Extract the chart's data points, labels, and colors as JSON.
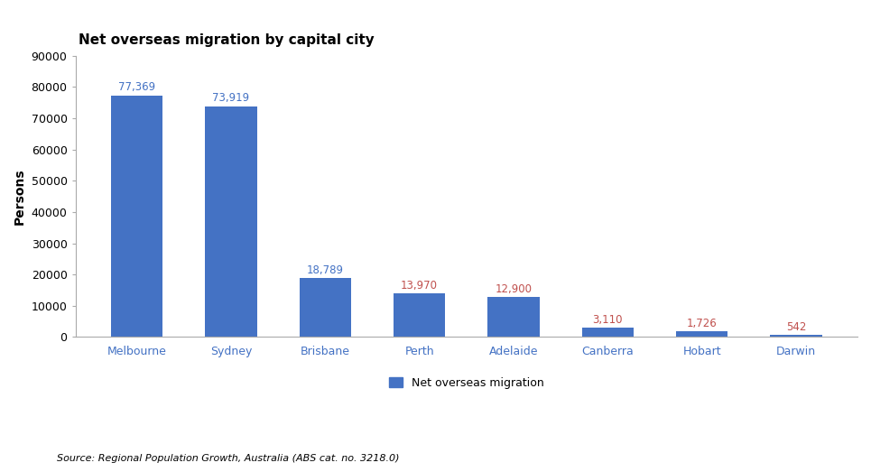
{
  "title": "Net overseas migration by capital city",
  "categories": [
    "Melbourne",
    "Sydney",
    "Brisbane",
    "Perth",
    "Adelaide",
    "Canberra",
    "Hobart",
    "Darwin"
  ],
  "values": [
    77369,
    73919,
    18789,
    13970,
    12900,
    3110,
    1726,
    542
  ],
  "labels": [
    "77,369",
    "73,919",
    "18,789",
    "13,970",
    "12,900",
    "3,110",
    "1,726",
    "542"
  ],
  "bar_color": "#4472C4",
  "label_color_large": "#4472C4",
  "label_color_small": "#C0504D",
  "xticklabel_color": "#4472C4",
  "ylabel": "Persons",
  "ylim": [
    0,
    90000
  ],
  "yticks": [
    0,
    10000,
    20000,
    30000,
    40000,
    50000,
    60000,
    70000,
    80000,
    90000
  ],
  "ytick_labels": [
    "0",
    "10000",
    "20000",
    "30000",
    "40000",
    "50000",
    "60000",
    "70000",
    "80000",
    "90000"
  ],
  "legend_label": "Net overseas migration",
  "legend_color": "#4472C4",
  "source_text": "Source: Regional Population Growth, Australia (ABS cat. no. 3218.0)",
  "title_fontsize": 11,
  "axis_label_fontsize": 10,
  "bar_label_fontsize": 8.5,
  "tick_fontsize": 9,
  "source_fontsize": 8,
  "legend_fontsize": 9,
  "background_color": "#FFFFFF",
  "small_value_threshold": 13970,
  "bar_width": 0.55
}
